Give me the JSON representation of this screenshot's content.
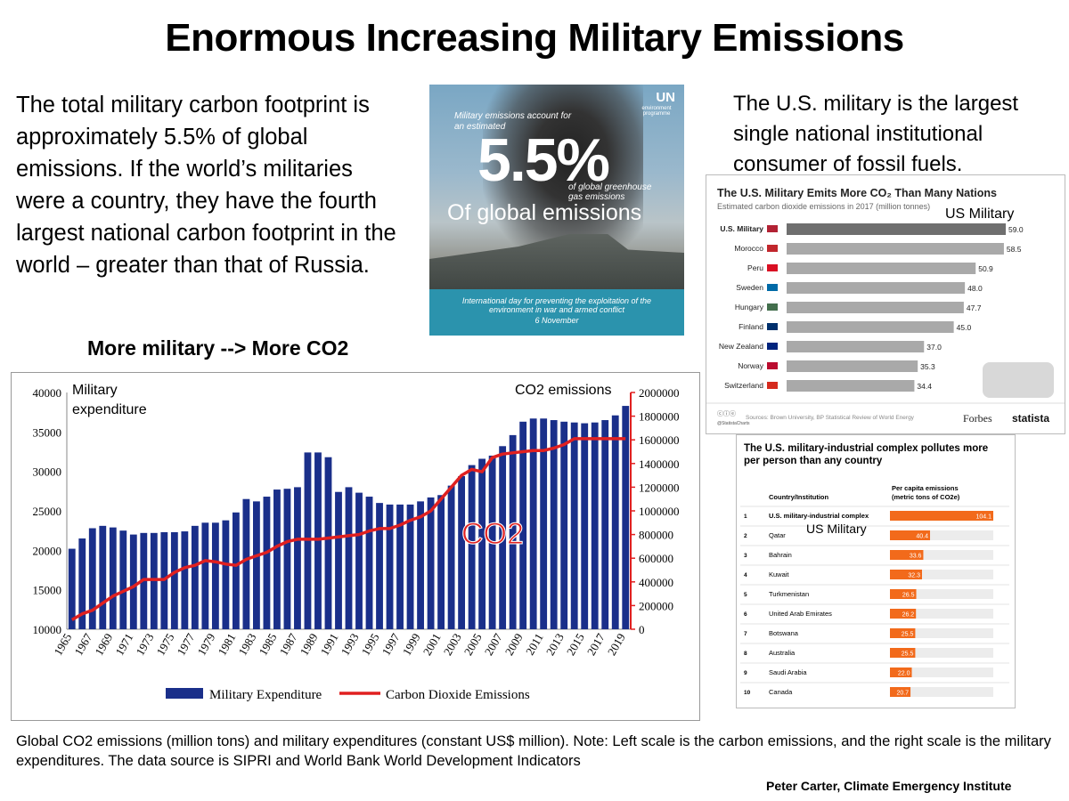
{
  "title": "Enormous Increasing Military Emissions",
  "intro": "The total military carbon footprint is approximately 5.5% of global emissions. If the world’s militaries were a country, they have the fourth largest national carbon footprint in the world – greater than that of Russia.",
  "us_note": "The U.S. military is the largest single national institutional consumer of fossil fuels.",
  "more_military": "More military --> More CO2",
  "unep": {
    "logo": "UN",
    "logo_sub": "environment programme",
    "lead": "Military emissions account for an estimated",
    "big": "5.5%",
    "sub": "of global greenhouse gas emissions",
    "overlay": "Of global emissions",
    "footer": "International day for preventing the exploitation of the environment in war and armed conflict",
    "date": "6 November"
  },
  "caption": "Global CO2 emissions (million tons) and military expenditures (constant US$ million). Note: Left scale is the carbon emissions, and the right scale is the military expenditures. The data source is SIPRI and World Bank World Development Indicators",
  "credit": "Peter Carter, Climate Emergency Institute",
  "chart_data": [
    {
      "type": "bar",
      "title": "",
      "left_label": "Military expenditure",
      "right_label": "CO2 emissions",
      "overlay_label": "CO2",
      "left_ticks": [
        "10000",
        "15000",
        "20000",
        "25000",
        "30000",
        "35000",
        "40000"
      ],
      "right_ticks": [
        "0",
        "200000",
        "400000",
        "600000",
        "800000",
        "1000000",
        "1200000",
        "1400000",
        "1600000",
        "1800000",
        "2000000"
      ],
      "x_ticks": [
        "1965",
        "1967",
        "1969",
        "1971",
        "1973",
        "1975",
        "1977",
        "1979",
        "1981",
        "1983",
        "1985",
        "1987",
        "1989",
        "1991",
        "1993",
        "1995",
        "1997",
        "1999",
        "2001",
        "2003",
        "2005",
        "2007",
        "2009",
        "2011",
        "2013",
        "2015",
        "2017",
        "2019"
      ],
      "ylim_left": [
        10000,
        40000
      ],
      "ylim_right": [
        0,
        2000000
      ],
      "x": [
        1965,
        1966,
        1967,
        1968,
        1969,
        1970,
        1971,
        1972,
        1973,
        1974,
        1975,
        1976,
        1977,
        1978,
        1979,
        1980,
        1981,
        1982,
        1983,
        1984,
        1985,
        1986,
        1987,
        1988,
        1989,
        1990,
        1991,
        1992,
        1993,
        1994,
        1995,
        1996,
        1997,
        1998,
        1999,
        2000,
        2001,
        2002,
        2003,
        2004,
        2005,
        2006,
        2007,
        2008,
        2009,
        2010,
        2011,
        2012,
        2013,
        2014,
        2015,
        2016,
        2017,
        2018,
        2019
      ],
      "series": [
        {
          "name": "Military Expenditure",
          "type": "bar",
          "axis": "left",
          "values": [
            20200,
            21500,
            22800,
            23100,
            22900,
            22500,
            22000,
            22200,
            22200,
            22300,
            22300,
            22400,
            23100,
            23500,
            23500,
            23800,
            24800,
            26500,
            26200,
            26800,
            27700,
            27800,
            28000,
            32400,
            32400,
            31800,
            27400,
            28000,
            27300,
            26800,
            26000,
            25800,
            25800,
            25800,
            26200,
            26700,
            27000,
            28200,
            29400,
            30800,
            31600,
            32000,
            33200,
            34600,
            36300,
            36700,
            36700,
            36500,
            36300,
            36200,
            36100,
            36200,
            36500,
            37100,
            38300
          ]
        },
        {
          "name": "Carbon Dioxide Emissions",
          "type": "line",
          "axis": "right",
          "values": [
            80000,
            130000,
            160000,
            220000,
            280000,
            320000,
            360000,
            420000,
            420000,
            420000,
            480000,
            520000,
            540000,
            580000,
            570000,
            550000,
            540000,
            590000,
            620000,
            650000,
            700000,
            740000,
            760000,
            760000,
            760000,
            770000,
            780000,
            790000,
            800000,
            830000,
            850000,
            850000,
            880000,
            920000,
            950000,
            1000000,
            1100000,
            1200000,
            1300000,
            1350000,
            1330000,
            1450000,
            1480000,
            1490000,
            1500000,
            1510000,
            1510000,
            1530000,
            1560000,
            1610000,
            1610000,
            1610000,
            1610000,
            1610000,
            1610000
          ]
        }
      ],
      "legend": [
        "Military Expenditure",
        "Carbon Dioxide Emissions"
      ],
      "colors": {
        "bar": "#1a2f8a",
        "line": "#e02020"
      }
    },
    {
      "type": "bar",
      "title": "The U.S. Military Emits More CO₂ Than Many Nations",
      "subtitle": "Estimated carbon dioxide emissions in 2017 (million tonnes)",
      "annotation": "US Military",
      "categories": [
        "U.S. Military",
        "Morocco",
        "Peru",
        "Sweden",
        "Hungary",
        "Finland",
        "New Zealand",
        "Norway",
        "Switzerland"
      ],
      "labels": [
        "59.0",
        "58.5",
        "50.9",
        "48.0",
        "47.7",
        "45.0",
        "37.0",
        "35.3",
        "34.4"
      ],
      "values": [
        59.0,
        58.5,
        50.9,
        48.0,
        47.7,
        45.0,
        37.0,
        35.3,
        34.4
      ],
      "source": "Sources: Brown University, BP Statistical Review of World Energy",
      "brand1": "Forbes",
      "brand2": "statista",
      "cc": "@StatistaCharts"
    },
    {
      "type": "table",
      "title": "The U.S. military-industrial complex pollutes more per person than any country",
      "col1": "Country/Institution",
      "col2": "Per capita emissions (metric tons of CO2e)",
      "annotation": "US Military",
      "rows": [
        {
          "rank": "1",
          "name": "U.S. military-industrial complex",
          "label": "104.1",
          "value": 104.1
        },
        {
          "rank": "2",
          "name": "Qatar",
          "label": "40.4",
          "value": 40.4
        },
        {
          "rank": "3",
          "name": "Bahrain",
          "label": "33.6",
          "value": 33.6
        },
        {
          "rank": "4",
          "name": "Kuwait",
          "label": "32.3",
          "value": 32.3
        },
        {
          "rank": "5",
          "name": "Turkmenistan",
          "label": "26.5",
          "value": 26.5
        },
        {
          "rank": "6",
          "name": "United Arab Emirates",
          "label": "26.2",
          "value": 26.2
        },
        {
          "rank": "7",
          "name": "Botswana",
          "label": "25.5",
          "value": 25.5
        },
        {
          "rank": "8",
          "name": "Australia",
          "label": "25.5",
          "value": 25.5
        },
        {
          "rank": "9",
          "name": "Saudi Arabia",
          "label": "22.0",
          "value": 22.0
        },
        {
          "rank": "10",
          "name": "Canada",
          "label": "20.7",
          "value": 20.7
        }
      ]
    }
  ]
}
